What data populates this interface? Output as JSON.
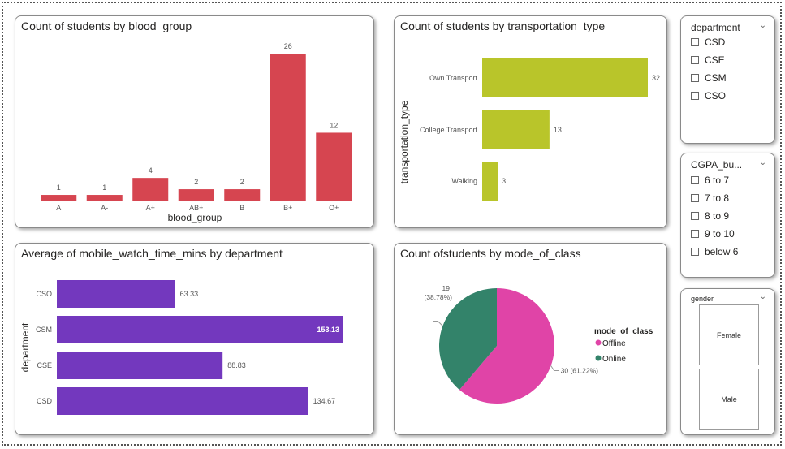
{
  "chart_data": [
    {
      "type": "bar",
      "title": "Count of students by blood_group",
      "xlabel": "blood_group",
      "ylabel": "",
      "categories": [
        "A",
        "A-",
        "A+",
        "AB+",
        "B",
        "B+",
        "O+"
      ],
      "values": [
        1,
        1,
        4,
        2,
        2,
        26,
        12
      ],
      "color": "#d64550",
      "ylim": [
        0,
        26
      ]
    },
    {
      "type": "bar",
      "orientation": "horizontal",
      "title": "Count of students by transportation_type",
      "xlabel": "",
      "ylabel": "transportation_type",
      "categories": [
        "Own Transport",
        "College Transport",
        "Walking"
      ],
      "values": [
        32,
        13,
        3
      ],
      "color": "#b9c52a",
      "xlim": [
        0,
        32
      ]
    },
    {
      "type": "bar",
      "orientation": "horizontal",
      "title": "Average of mobile_watch_time_mins by department",
      "xlabel": "",
      "ylabel": "department",
      "categories": [
        "CSO",
        "CSM",
        "CSE",
        "CSD"
      ],
      "values": [
        63.33,
        153.13,
        88.83,
        134.67
      ],
      "labels": [
        "63.33",
        "153.13",
        "88.83",
        "134.67"
      ],
      "color": "#7338be",
      "xlim": [
        0,
        153.13
      ]
    },
    {
      "type": "pie",
      "title": "Count ofstudents by mode_of_class",
      "legend_title": "mode_of_class",
      "legend_position": "right",
      "categories": [
        "Offline",
        "Online"
      ],
      "values": [
        30,
        19
      ],
      "labels": [
        "30 (61.22%)",
        "19 (38.78%)"
      ],
      "colors": [
        "#e044a7",
        "#33836a"
      ]
    }
  ],
  "slicers": {
    "department": {
      "title": "department",
      "options": [
        "CSD",
        "CSE",
        "CSM",
        "CSO"
      ]
    },
    "cgpa": {
      "title": "CGPA_bu...",
      "options": [
        "6 to 7",
        "7 to 8",
        "8 to 9",
        "9 to 10",
        "below 6"
      ]
    },
    "gender": {
      "title": "gender",
      "options": [
        "Female",
        "Male"
      ]
    }
  }
}
